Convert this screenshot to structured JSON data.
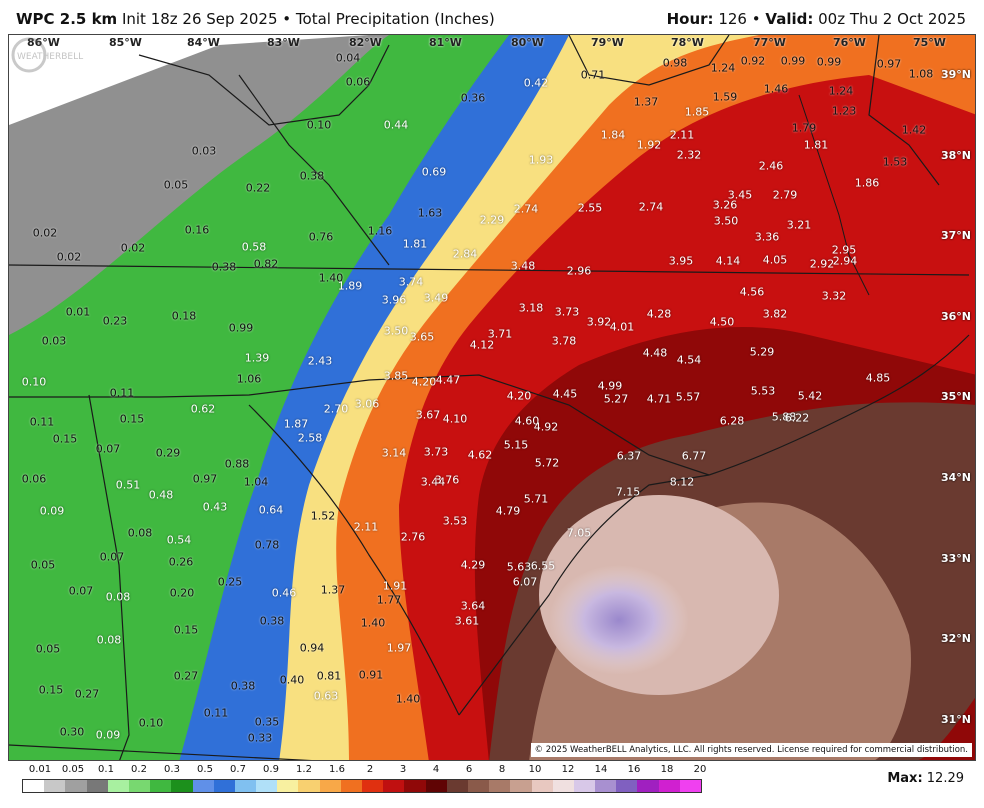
{
  "header": {
    "model": "WPC 2.5 km",
    "init": "Init 18z 26 Sep 2025",
    "bullet": "•",
    "product": "Total Precipitation (Inches)",
    "hour_label": "Hour:",
    "hour": "126",
    "valid_label": "Valid:",
    "valid": "00z Thu 2 Oct 2025"
  },
  "longitudes": [
    "86°W",
    "85°W",
    "84°W",
    "83°W",
    "82°W",
    "81°W",
    "80°W",
    "79°W",
    "78°W",
    "77°W",
    "76°W",
    "75°W"
  ],
  "latitudes": [
    "39°N",
    "38°N",
    "37°N",
    "36°N",
    "35°N",
    "34°N",
    "33°N",
    "32°N",
    "31°N"
  ],
  "values": [
    {
      "t": "0.04",
      "c": "dark"
    },
    {
      "t": "0.06",
      "c": "dark"
    },
    {
      "t": "0.36",
      "c": "dark"
    },
    {
      "t": "0.42",
      "c": "light"
    },
    {
      "t": "0.71",
      "c": "dark"
    },
    {
      "t": "0.98",
      "c": "dark"
    },
    {
      "t": "1.24",
      "c": "dark"
    },
    {
      "t": "0.92",
      "c": "dark"
    },
    {
      "t": "0.99",
      "c": "dark"
    },
    {
      "t": "0.99",
      "c": "dark"
    },
    {
      "t": "0.97",
      "c": "dark"
    },
    {
      "t": "1.08",
      "c": "dark"
    },
    {
      "t": "0.10",
      "c": "dark"
    },
    {
      "t": "0.44",
      "c": "light"
    },
    {
      "t": "1.37",
      "c": "dark"
    },
    {
      "t": "1.85",
      "c": "light"
    },
    {
      "t": "1.59",
      "c": "dark"
    },
    {
      "t": "1.46",
      "c": "dark"
    },
    {
      "t": "1.24",
      "c": "dark"
    },
    {
      "t": "1.23",
      "c": "dark"
    },
    {
      "t": "1.42",
      "c": "dark"
    },
    {
      "t": "0.03",
      "c": "dark"
    },
    {
      "t": "1.84",
      "c": "light"
    },
    {
      "t": "2.11",
      "c": "light"
    },
    {
      "t": "1.92",
      "c": "light"
    },
    {
      "t": "2.32",
      "c": "light"
    },
    {
      "t": "1.79",
      "c": "dark"
    },
    {
      "t": "1.81",
      "c": "light"
    },
    {
      "t": "1.53",
      "c": "dark"
    },
    {
      "t": "0.05",
      "c": "dark"
    },
    {
      "t": "0.38",
      "c": "dark"
    },
    {
      "t": "0.69",
      "c": "light"
    },
    {
      "t": "1.93",
      "c": "light"
    },
    {
      "t": "2.46",
      "c": "light"
    },
    {
      "t": "1.86",
      "c": "light"
    },
    {
      "t": "0.22",
      "c": "dark"
    },
    {
      "t": "1.63",
      "c": "dark"
    },
    {
      "t": "2.74",
      "c": "light"
    },
    {
      "t": "2.55",
      "c": "light"
    },
    {
      "t": "2.74",
      "c": "light"
    },
    {
      "t": "3.45",
      "c": "light"
    },
    {
      "t": "2.79",
      "c": "light"
    },
    {
      "t": "3.26",
      "c": "light"
    },
    {
      "t": "2.29",
      "c": "light"
    },
    {
      "t": "3.50",
      "c": "light"
    },
    {
      "t": "3.21",
      "c": "light"
    },
    {
      "t": "0.02",
      "c": "dark"
    },
    {
      "t": "0.16",
      "c": "dark"
    },
    {
      "t": "0.76",
      "c": "dark"
    },
    {
      "t": "1.16",
      "c": "dark"
    },
    {
      "t": "3.36",
      "c": "light"
    },
    {
      "t": "0.02",
      "c": "dark"
    },
    {
      "t": "0.58",
      "c": "light"
    },
    {
      "t": "1.81",
      "c": "light"
    },
    {
      "t": "2.84",
      "c": "light"
    },
    {
      "t": "2.95",
      "c": "light"
    },
    {
      "t": "0.02",
      "c": "dark"
    },
    {
      "t": "0.82",
      "c": "dark"
    },
    {
      "t": "3.48",
      "c": "light"
    },
    {
      "t": "3.95",
      "c": "light"
    },
    {
      "t": "4.14",
      "c": "light"
    },
    {
      "t": "4.05",
      "c": "light"
    },
    {
      "t": "2.92",
      "c": "light"
    },
    {
      "t": "2.94",
      "c": "light"
    },
    {
      "t": "0.38",
      "c": "dark"
    },
    {
      "t": "2.96",
      "c": "light"
    },
    {
      "t": "1.40",
      "c": "dark"
    },
    {
      "t": "3.74",
      "c": "light"
    },
    {
      "t": "1.89",
      "c": "light"
    },
    {
      "t": "4.56",
      "c": "light"
    },
    {
      "t": "3.32",
      "c": "light"
    },
    {
      "t": "3.96",
      "c": "light"
    },
    {
      "t": "3.49",
      "c": "light"
    },
    {
      "t": "0.01",
      "c": "dark"
    },
    {
      "t": "0.18",
      "c": "dark"
    },
    {
      "t": "3.18",
      "c": "light"
    },
    {
      "t": "3.73",
      "c": "light"
    },
    {
      "t": "4.28",
      "c": "light"
    },
    {
      "t": "3.82",
      "c": "light"
    },
    {
      "t": "0.23",
      "c": "dark"
    },
    {
      "t": "3.92",
      "c": "light"
    },
    {
      "t": "4.01",
      "c": "light"
    },
    {
      "t": "4.50",
      "c": "light"
    },
    {
      "t": "0.99",
      "c": "dark"
    },
    {
      "t": "3.50",
      "c": "light"
    },
    {
      "t": "3.71",
      "c": "light"
    },
    {
      "t": "3.65",
      "c": "light"
    },
    {
      "t": "0.03",
      "c": "dark"
    },
    {
      "t": "4.12",
      "c": "light"
    },
    {
      "t": "3.78",
      "c": "light"
    },
    {
      "t": "4.48",
      "c": "light"
    },
    {
      "t": "5.29",
      "c": "light"
    },
    {
      "t": "1.39",
      "c": "light"
    },
    {
      "t": "2.43",
      "c": "light"
    },
    {
      "t": "4.54",
      "c": "light"
    },
    {
      "t": "1.06",
      "c": "dark"
    },
    {
      "t": "3.85",
      "c": "light"
    },
    {
      "t": "4.20",
      "c": "light"
    },
    {
      "t": "4.47",
      "c": "light"
    },
    {
      "t": "4.85",
      "c": "light"
    },
    {
      "t": "0.10",
      "c": "light"
    },
    {
      "t": "0.11",
      "c": "dark"
    },
    {
      "t": "5.53",
      "c": "light"
    },
    {
      "t": "4.99",
      "c": "light"
    },
    {
      "t": "4.20",
      "c": "light"
    },
    {
      "t": "4.45",
      "c": "light"
    },
    {
      "t": "5.27",
      "c": "light"
    },
    {
      "t": "4.71",
      "c": "light"
    },
    {
      "t": "5.57",
      "c": "light"
    },
    {
      "t": "5.42",
      "c": "light"
    },
    {
      "t": "0.62",
      "c": "light"
    },
    {
      "t": "2.70",
      "c": "light"
    },
    {
      "t": "3.06",
      "c": "light"
    },
    {
      "t": "3.67",
      "c": "light"
    },
    {
      "t": "4.10",
      "c": "light"
    },
    {
      "t": "5.88",
      "c": "light"
    },
    {
      "t": "6.22",
      "c": "light"
    },
    {
      "t": "0.11",
      "c": "dark"
    },
    {
      "t": "0.15",
      "c": "dark"
    },
    {
      "t": "1.87",
      "c": "light"
    },
    {
      "t": "4.60",
      "c": "light"
    },
    {
      "t": "4.92",
      "c": "light"
    },
    {
      "t": "6.28",
      "c": "light"
    },
    {
      "t": "2.58",
      "c": "light"
    },
    {
      "t": "0.15",
      "c": "dark"
    },
    {
      "t": "5.15",
      "c": "light"
    },
    {
      "t": "6.37",
      "c": "light"
    },
    {
      "t": "6.77",
      "c": "light"
    },
    {
      "t": "0.07",
      "c": "dark"
    },
    {
      "t": "0.29",
      "c": "dark"
    },
    {
      "t": "3.14",
      "c": "light"
    },
    {
      "t": "3.73",
      "c": "light"
    },
    {
      "t": "4.62",
      "c": "light"
    },
    {
      "t": "5.72",
      "c": "light"
    },
    {
      "t": "0.88",
      "c": "dark"
    },
    {
      "t": "0.97",
      "c": "dark"
    },
    {
      "t": "1.04",
      "c": "dark"
    },
    {
      "t": "3.44",
      "c": "light"
    },
    {
      "t": "3.76",
      "c": "light"
    },
    {
      "t": "0.06",
      "c": "dark"
    },
    {
      "t": "8.12",
      "c": "light"
    },
    {
      "t": "0.51",
      "c": "light"
    },
    {
      "t": "7.15",
      "c": "light"
    },
    {
      "t": "0.48",
      "c": "light"
    },
    {
      "t": "5.71",
      "c": "light"
    },
    {
      "t": "0.43",
      "c": "light"
    },
    {
      "t": "0.64",
      "c": "light"
    },
    {
      "t": "0.09",
      "c": "light"
    },
    {
      "t": "1.52",
      "c": "dark"
    },
    {
      "t": "4.79",
      "c": "light"
    },
    {
      "t": "3.53",
      "c": "light"
    },
    {
      "t": "2.11",
      "c": "light"
    },
    {
      "t": "0.08",
      "c": "dark"
    },
    {
      "t": "7.05",
      "c": "light"
    },
    {
      "t": "0.54",
      "c": "light"
    },
    {
      "t": "2.76",
      "c": "light"
    },
    {
      "t": "0.78",
      "c": "dark"
    },
    {
      "t": "0.07",
      "c": "dark"
    },
    {
      "t": "0.26",
      "c": "dark"
    },
    {
      "t": "0.05",
      "c": "dark"
    },
    {
      "t": "4.29",
      "c": "light"
    },
    {
      "t": "5.63",
      "c": "light"
    },
    {
      "t": "6.55",
      "c": "light"
    },
    {
      "t": "6.07",
      "c": "light"
    },
    {
      "t": "0.25",
      "c": "dark"
    },
    {
      "t": "1.37",
      "c": "dark"
    },
    {
      "t": "0.07",
      "c": "dark"
    },
    {
      "t": "1.91",
      "c": "light"
    },
    {
      "t": "0.46",
      "c": "light"
    },
    {
      "t": "0.20",
      "c": "dark"
    },
    {
      "t": "1.77",
      "c": "dark"
    },
    {
      "t": "0.08",
      "c": "light"
    },
    {
      "t": "0.38",
      "c": "dark"
    },
    {
      "t": "1.40",
      "c": "dark"
    },
    {
      "t": "3.64",
      "c": "light"
    },
    {
      "t": "3.61",
      "c": "light"
    },
    {
      "t": "0.15",
      "c": "dark"
    },
    {
      "t": "0.05",
      "c": "dark"
    },
    {
      "t": "0.94",
      "c": "dark"
    },
    {
      "t": "1.97",
      "c": "light"
    },
    {
      "t": "0.08",
      "c": "light"
    },
    {
      "t": "0.27",
      "c": "dark"
    },
    {
      "t": "0.91",
      "c": "dark"
    },
    {
      "t": "0.81",
      "c": "dark"
    },
    {
      "t": "0.15",
      "c": "dark"
    },
    {
      "t": "0.27",
      "c": "dark"
    },
    {
      "t": "0.38",
      "c": "dark"
    },
    {
      "t": "0.40",
      "c": "dark"
    },
    {
      "t": "0.63",
      "c": "light"
    },
    {
      "t": "1.40",
      "c": "dark"
    },
    {
      "t": "0.11",
      "c": "dark"
    },
    {
      "t": "0.10",
      "c": "dark"
    },
    {
      "t": "0.35",
      "c": "dark"
    },
    {
      "t": "0.30",
      "c": "dark"
    },
    {
      "t": "0.09",
      "c": "light"
    },
    {
      "t": "0.33",
      "c": "dark"
    }
  ],
  "copyright": "© 2025 WeatherBELL Analytics, LLC. All rights reserved. License required for commercial distribution.",
  "watermark": "WEATHERBELL",
  "legend": {
    "ticks": [
      "0.01",
      "0.05",
      "0.1",
      "0.2",
      "0.3",
      "0.5",
      "0.7",
      "0.9",
      "1.2",
      "1.6",
      "2",
      "3",
      "4",
      "6",
      "8",
      "10",
      "12",
      "14",
      "16",
      "18",
      "20"
    ],
    "colors": [
      "#ffffff",
      "#c8c8c8",
      "#a0a0a0",
      "#787878",
      "#a8f0a0",
      "#78d870",
      "#40b840",
      "#1c901c",
      "#6090e8",
      "#3070d8",
      "#80c0f0",
      "#b0e0f8",
      "#f8f0a0",
      "#f8d070",
      "#f8a848",
      "#f07020",
      "#e03010",
      "#c01010",
      "#900808",
      "#600404",
      "#6a3a30",
      "#8a5a4a",
      "#a87a68",
      "#c8a090",
      "#e8c8c0",
      "#f0e0e0",
      "#d8c8e8",
      "#a890d0",
      "#8060c0",
      "#a020c0",
      "#d020d0",
      "#f040f0"
    ],
    "max_label": "Max:",
    "max_value": "12.29"
  },
  "colors": {
    "land_border": "#1a1a1a",
    "county_border": "#ffffff"
  }
}
